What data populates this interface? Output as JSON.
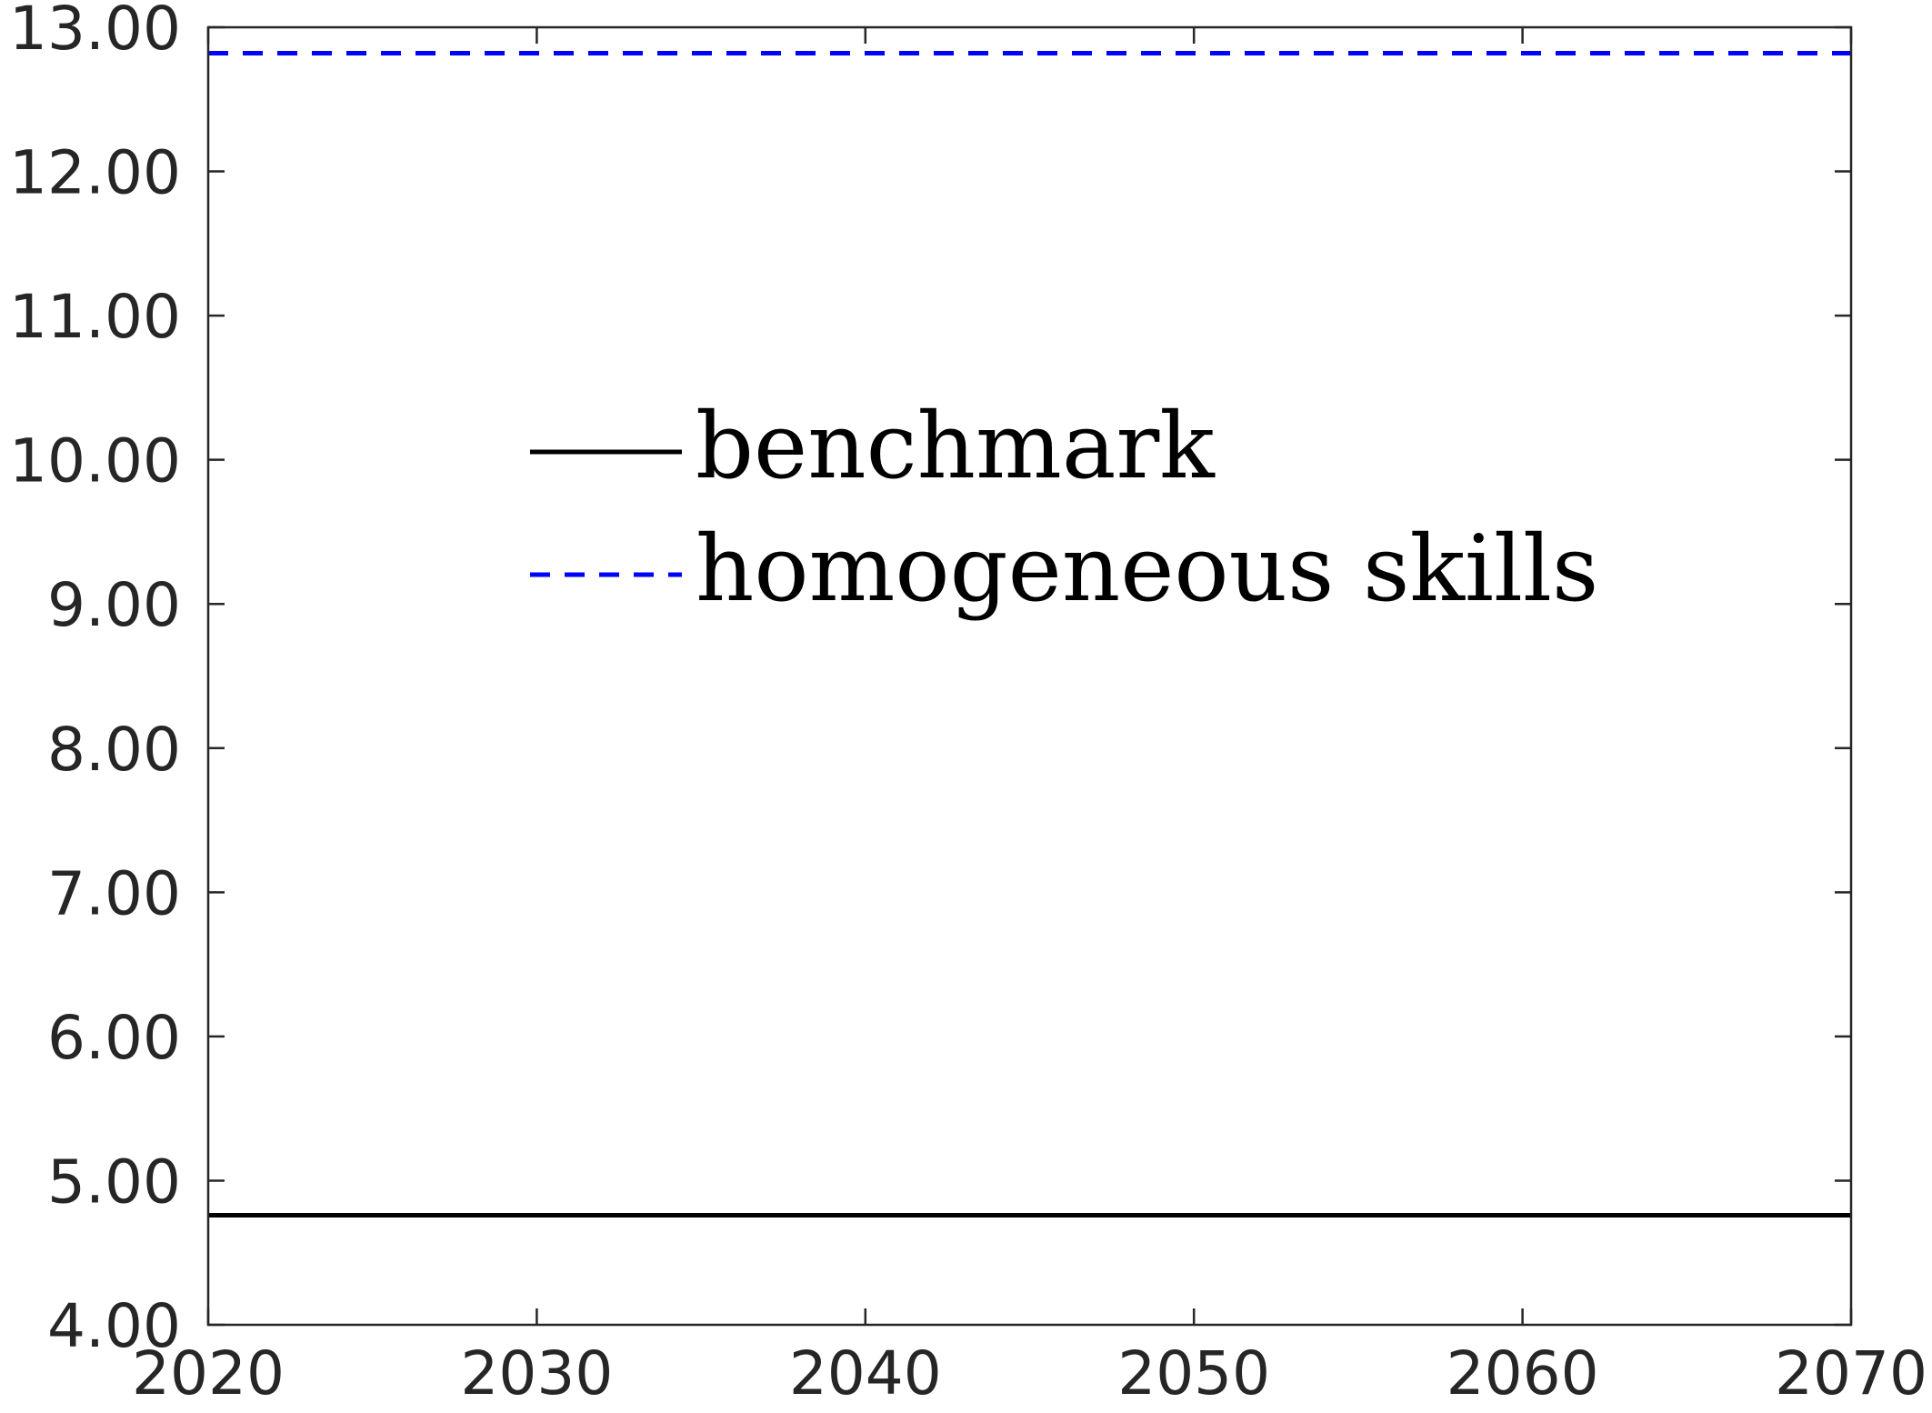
{
  "chart_data": {
    "type": "line",
    "title": "",
    "xlabel": "",
    "ylabel": "",
    "xlim": [
      2020,
      2070
    ],
    "ylim": [
      4.0,
      13.0
    ],
    "x_ticks": [
      2020,
      2030,
      2040,
      2050,
      2060,
      2070
    ],
    "x_tick_labels": [
      "2020",
      "2030",
      "2040",
      "2050",
      "2060",
      "2070"
    ],
    "y_ticks": [
      4,
      5,
      6,
      7,
      8,
      9,
      10,
      11,
      12,
      13
    ],
    "y_tick_labels": [
      "4.00",
      "5.00",
      "6.00",
      "7.00",
      "8.00",
      "9.00",
      "10.00",
      "11.00",
      "12.00",
      "13.00"
    ],
    "grid": false,
    "legend_position": "center-left",
    "series": [
      {
        "name": "benchmark",
        "color": "#000000",
        "line_style": "solid",
        "x": [
          2020,
          2070
        ],
        "y": [
          4.76,
          4.76
        ]
      },
      {
        "name": "homogeneous skills",
        "color": "#0000ff",
        "line_style": "dashed",
        "x": [
          2020,
          2070
        ],
        "y": [
          12.82,
          12.82
        ]
      }
    ]
  }
}
